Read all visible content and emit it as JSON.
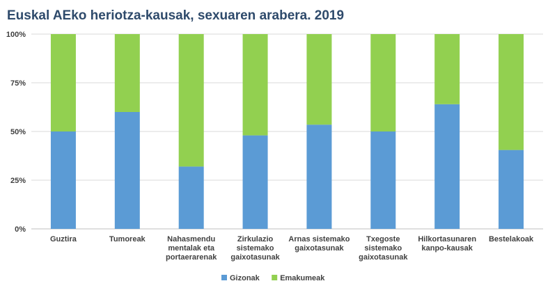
{
  "chart_data": {
    "type": "bar",
    "stacked": true,
    "normalized": true,
    "title": "Euskal AEko heriotza-kausak, sexuaren arabera. 2019",
    "categories": [
      [
        "Guztira"
      ],
      [
        "Tumoreak"
      ],
      [
        "Nahasmendu",
        "mentalak eta",
        "portaerarenak"
      ],
      [
        "Zirkulazio",
        "sistemako",
        "gaixotasunak"
      ],
      [
        "Arnas sistemako",
        "gaixotasunak"
      ],
      [
        "Txegoste",
        "sistemako",
        "gaixotasunak"
      ],
      [
        "Hilkortasunaren",
        "kanpo-kausak"
      ],
      [
        "Bestelakoak"
      ]
    ],
    "series": [
      {
        "name": "Gizonak",
        "color": "#5b9bd5",
        "values": [
          50,
          60,
          32,
          48,
          53.5,
          50,
          64,
          40.5
        ]
      },
      {
        "name": "Emakumeak",
        "color": "#92d050",
        "values": [
          50,
          40,
          68,
          52,
          46.5,
          50,
          36,
          59.5
        ]
      }
    ],
    "ylim": [
      0,
      100
    ],
    "yticks": [
      "0%",
      "25%",
      "50%",
      "75%",
      "100%"
    ],
    "ytick_values": [
      0,
      25,
      50,
      75,
      100
    ],
    "xlabel": "",
    "ylabel": "",
    "legend": "bottom-center",
    "grid": true
  }
}
